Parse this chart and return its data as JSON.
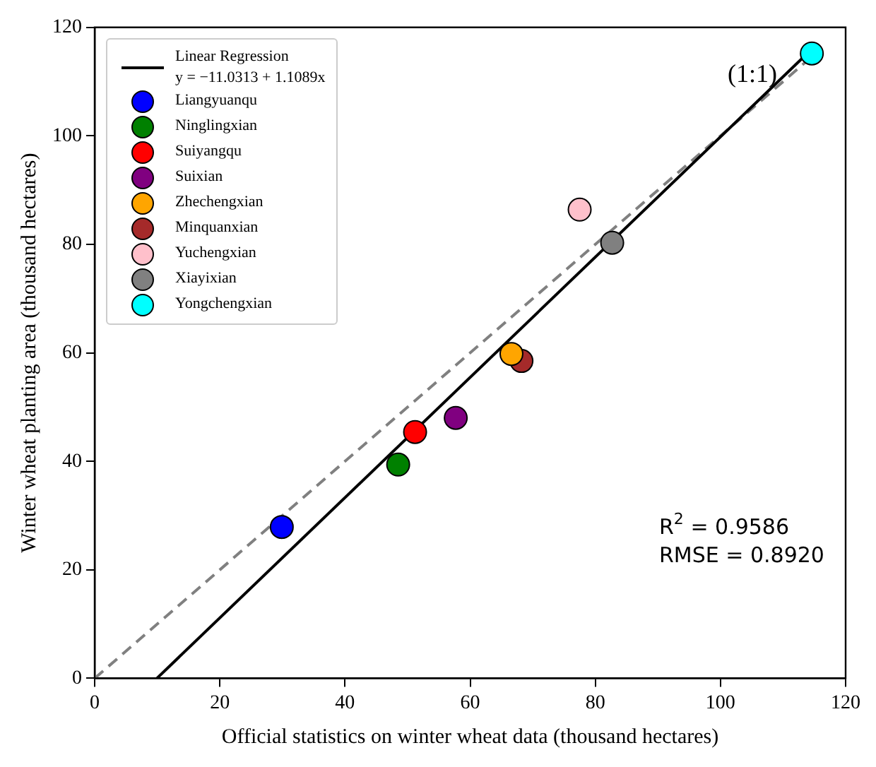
{
  "chart_data": {
    "type": "scatter",
    "xlabel": "Official statistics on winter wheat data (thousand hectares)",
    "ylabel": "Winter wheat planting area (thousand hectares)",
    "xlim": [
      0,
      120
    ],
    "ylim": [
      0,
      120
    ],
    "xticks": [
      0,
      20,
      40,
      60,
      80,
      100,
      120
    ],
    "yticks": [
      0,
      20,
      40,
      60,
      80,
      100,
      120
    ],
    "grid": false,
    "legend": "top left",
    "marker": "circle",
    "annotations": [
      "(1:1)",
      "R$^{2}$ = 0.9586",
      "RMSE = 0.8920"
    ],
    "series": [
      {
        "name": "Linear Regression\ny = −11.0313 + 1.1089x",
        "type": "line",
        "line_style": "solid",
        "marker": "none",
        "color": "#000000",
        "x": [
          9.95,
          114.6
        ],
        "values": [
          0,
          116
        ]
      },
      {
        "type": "line",
        "line_style": "dashed",
        "marker": "none",
        "color": "#808080",
        "x": [
          0,
          115
        ],
        "values": [
          0,
          115
        ]
      },
      {
        "name": "Liangyuanqu",
        "color": "#0000ff",
        "x": [
          29.9
        ],
        "values": [
          27.9
        ]
      },
      {
        "name": "Ninglingxian",
        "color": "#008000",
        "x": [
          48.5
        ],
        "values": [
          39.4
        ]
      },
      {
        "name": "Suiyangqu",
        "color": "#ff0000",
        "x": [
          51.2
        ],
        "values": [
          45.4
        ]
      },
      {
        "name": "Suixian",
        "color": "#800080",
        "x": [
          57.7
        ],
        "values": [
          48.0
        ]
      },
      {
        "name": "Zhechengxian",
        "color": "#ffa500",
        "x": [
          66.6
        ],
        "values": [
          59.8
        ]
      },
      {
        "name": "Minquanxian",
        "color": "#a52a2a",
        "x": [
          68.2
        ],
        "values": [
          58.5
        ]
      },
      {
        "name": "Yuchengxian",
        "color": "#ffc0cb",
        "x": [
          77.5
        ],
        "values": [
          86.4
        ]
      },
      {
        "name": "Xiayixian",
        "color": "#808080",
        "x": [
          82.7
        ],
        "values": [
          80.3
        ]
      },
      {
        "name": "Yongchengxian",
        "color": "#00ffff",
        "x": [
          114.6
        ],
        "values": [
          115.2
        ]
      }
    ]
  }
}
